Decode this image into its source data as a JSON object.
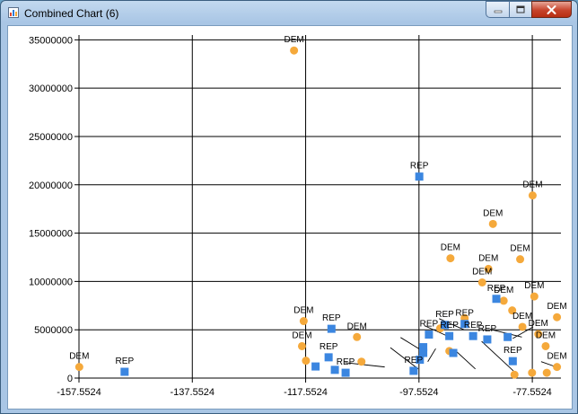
{
  "window": {
    "title": "Combined Chart (6)",
    "controls": [
      "minimize",
      "maximize",
      "close"
    ]
  },
  "chart_data": {
    "type": "scatter",
    "title": "",
    "xlabel": "",
    "ylabel": "",
    "xlim": [
      -157.5524,
      -72.5
    ],
    "ylim": [
      0,
      35500000
    ],
    "x_ticks": [
      "-157.5524",
      "-137.5524",
      "-117.5524",
      "-97.5524",
      "-77.5524"
    ],
    "y_ticks": [
      "0",
      "5000000",
      "10000000",
      "15000000",
      "20000000",
      "25000000",
      "30000000",
      "35000000"
    ],
    "grid": true,
    "colors": {
      "DEM": "#f5a93b",
      "REP": "#3b86e0"
    },
    "series": [
      {
        "name": "DEM",
        "marker": "circle",
        "points": [
          {
            "x": -157.5,
            "y": 1150000,
            "label": "DEM"
          },
          {
            "x": -119.6,
            "y": 33900000,
            "label": "DEM"
          },
          {
            "x": -117.9,
            "y": 5900000,
            "label": "DEM"
          },
          {
            "x": -118.2,
            "y": 3300000,
            "label": "DEM"
          },
          {
            "x": -117.5,
            "y": 1800000
          },
          {
            "x": -108.5,
            "y": 4250000,
            "label": "DEM"
          },
          {
            "x": -107.7,
            "y": 1700000
          },
          {
            "x": -93.8,
            "y": 5150000
          },
          {
            "x": -92.2,
            "y": 2800000
          },
          {
            "x": -92.0,
            "y": 12400000,
            "label": "DEM"
          },
          {
            "x": -89.5,
            "y": 6200000
          },
          {
            "x": -86.4,
            "y": 9900000,
            "label": "DEM"
          },
          {
            "x": -85.3,
            "y": 11300000,
            "label": "DEM"
          },
          {
            "x": -84.5,
            "y": 15950000,
            "label": "DEM"
          },
          {
            "x": -82.6,
            "y": 8000000,
            "label": "DEM"
          },
          {
            "x": -81.1,
            "y": 7000000
          },
          {
            "x": -79.7,
            "y": 12300000,
            "label": "DEM"
          },
          {
            "x": -79.3,
            "y": 5300000,
            "label": "DEM"
          },
          {
            "x": -77.5,
            "y": 18900000,
            "label": "DEM"
          },
          {
            "x": -77.2,
            "y": 8450000,
            "label": "DEM"
          },
          {
            "x": -77.6,
            "y": 550000
          },
          {
            "x": -76.5,
            "y": 4550000,
            "label": "DEM"
          },
          {
            "x": -75.2,
            "y": 3300000,
            "label": "DEM"
          },
          {
            "x": -75.0,
            "y": 550000
          },
          {
            "x": -73.2,
            "y": 6300000,
            "label": "DEM"
          },
          {
            "x": -73.2,
            "y": 1150000,
            "label": "DEM"
          },
          {
            "x": -80.7,
            "y": 350000
          }
        ]
      },
      {
        "name": "REP",
        "marker": "square",
        "points": [
          {
            "x": -149.5,
            "y": 650000,
            "label": "REP"
          },
          {
            "x": -97.5,
            "y": 20850000,
            "label": "REP"
          },
          {
            "x": -113.0,
            "y": 5100000,
            "label": "REP"
          },
          {
            "x": -115.8,
            "y": 1200000
          },
          {
            "x": -113.5,
            "y": 2150000,
            "label": "REP"
          },
          {
            "x": -112.4,
            "y": 850000
          },
          {
            "x": -110.5,
            "y": 550000,
            "label": "REP"
          },
          {
            "x": -98.5,
            "y": 750000,
            "label": "REP"
          },
          {
            "x": -97.4,
            "y": 1900000
          },
          {
            "x": -96.8,
            "y": 3200000
          },
          {
            "x": -96.8,
            "y": 2600000
          },
          {
            "x": -95.8,
            "y": 4500000,
            "label": "REP"
          },
          {
            "x": -93.0,
            "y": 5500000,
            "label": "REP"
          },
          {
            "x": -92.2,
            "y": 4350000,
            "label": "REP"
          },
          {
            "x": -91.5,
            "y": 2600000
          },
          {
            "x": -89.5,
            "y": 5600000,
            "label": "REP"
          },
          {
            "x": -88.0,
            "y": 4350000,
            "label": "REP"
          },
          {
            "x": -85.5,
            "y": 4000000,
            "label": "REP"
          },
          {
            "x": -83.9,
            "y": 8200000,
            "label": "REP"
          },
          {
            "x": -81.9,
            "y": 4250000
          },
          {
            "x": -81.0,
            "y": 1750000,
            "label": "REP"
          }
        ]
      }
    ]
  }
}
